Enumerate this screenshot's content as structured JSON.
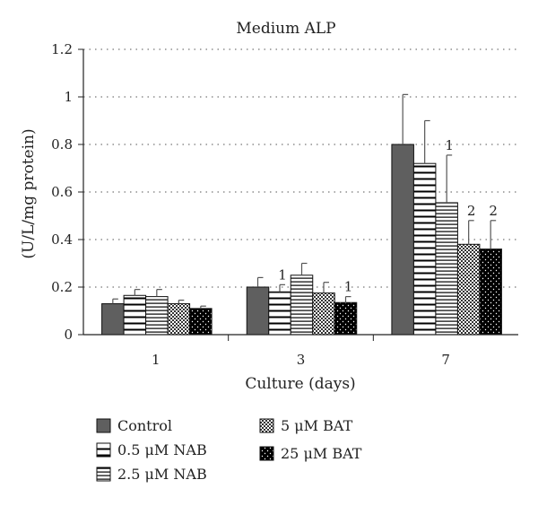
{
  "chart_data": {
    "type": "bar",
    "title": "Medium ALP",
    "xlabel": "Culture (days)",
    "ylabel": "(U/L/mg protein)",
    "ylim": [
      0,
      1.2
    ],
    "yticks": [
      "0",
      "0.2",
      "0.4",
      "0.6",
      "0.8",
      "1",
      "1.2"
    ],
    "grid": "horizontal dotted",
    "legend_position": "bottom",
    "categories": [
      "1",
      "3",
      "7"
    ],
    "series": [
      {
        "name": "Control",
        "pattern": "solid",
        "color": "#5f5f5f",
        "values": [
          0.13,
          0.2,
          0.8
        ],
        "errors": [
          0.02,
          0.04,
          0.21
        ],
        "annotations": [
          "",
          "",
          ""
        ]
      },
      {
        "name": "0.5 μM NAB",
        "pattern": "hlines",
        "color": "#000000",
        "values": [
          0.165,
          0.18,
          0.72
        ],
        "errors": [
          0.025,
          0.03,
          0.18
        ],
        "annotations": [
          "",
          "1",
          ""
        ]
      },
      {
        "name": "2.5 μM NAB",
        "pattern": "hlines-fine",
        "color": "#000000",
        "values": [
          0.16,
          0.25,
          0.555
        ],
        "errors": [
          0.03,
          0.05,
          0.2
        ],
        "annotations": [
          "",
          "",
          "1"
        ]
      },
      {
        "name": "5 μM BAT",
        "pattern": "checker",
        "color": "#444444",
        "values": [
          0.13,
          0.175,
          0.38
        ],
        "errors": [
          0.015,
          0.045,
          0.1
        ],
        "annotations": [
          "",
          "",
          "2"
        ]
      },
      {
        "name": "25 μM BAT",
        "pattern": "dots",
        "color": "#000000",
        "values": [
          0.11,
          0.135,
          0.36
        ],
        "errors": [
          0.01,
          0.025,
          0.12
        ],
        "annotations": [
          "",
          "1",
          "2"
        ]
      }
    ]
  }
}
